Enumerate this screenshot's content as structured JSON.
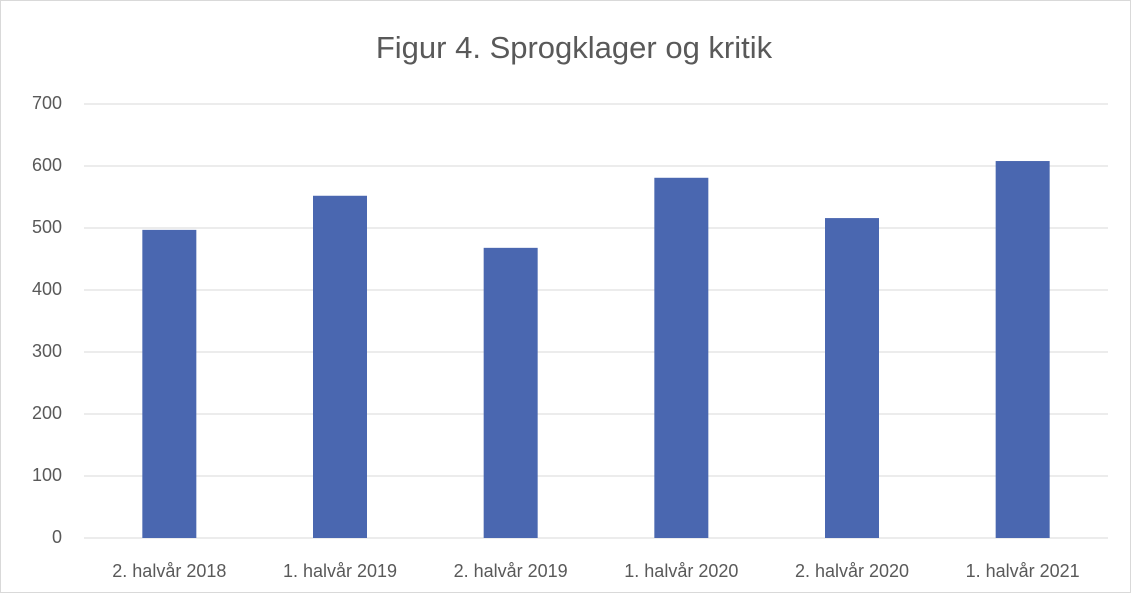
{
  "chart_data": {
    "type": "bar",
    "title": "Figur 4. Sprogklager og kritik",
    "categories": [
      "2. halvår 2018",
      "1. halvår 2019",
      "2. halvår 2019",
      "1. halvår 2020",
      "2. halvår 2020",
      "1. halvår 2021"
    ],
    "values": [
      497,
      552,
      468,
      581,
      516,
      608
    ],
    "color": "#4a67b0",
    "ylim": [
      0,
      700
    ],
    "yticks": [
      0,
      100,
      200,
      300,
      400,
      500,
      600,
      700
    ],
    "grid": true
  }
}
